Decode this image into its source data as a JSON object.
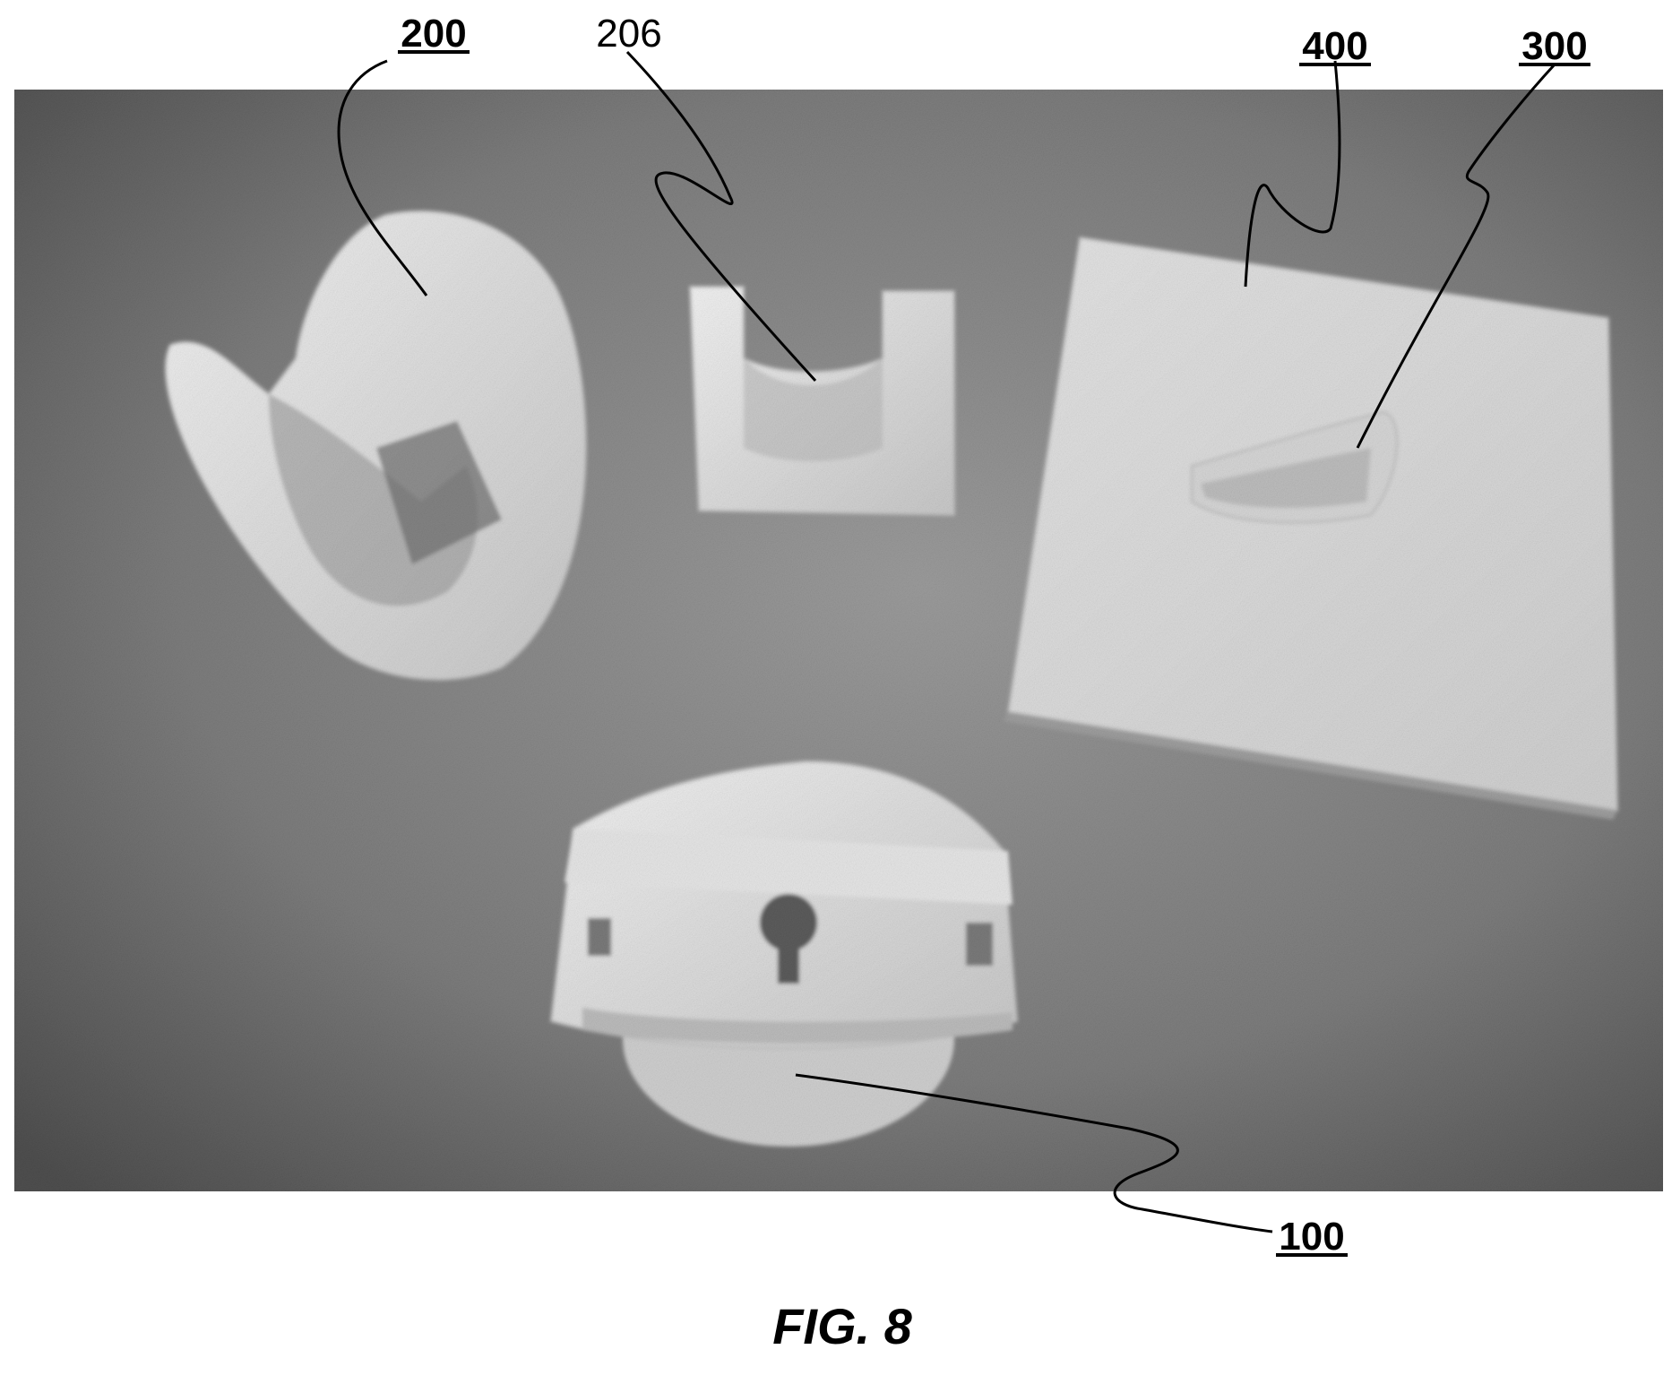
{
  "figure": {
    "caption": "FIG. 8",
    "labels": {
      "label_200": "200",
      "label_206": "206",
      "label_400": "400",
      "label_300": "300",
      "label_100": "100"
    }
  },
  "colors": {
    "background": "#7b7b7b",
    "object": "#e8e8e8",
    "ink": "#000000"
  }
}
